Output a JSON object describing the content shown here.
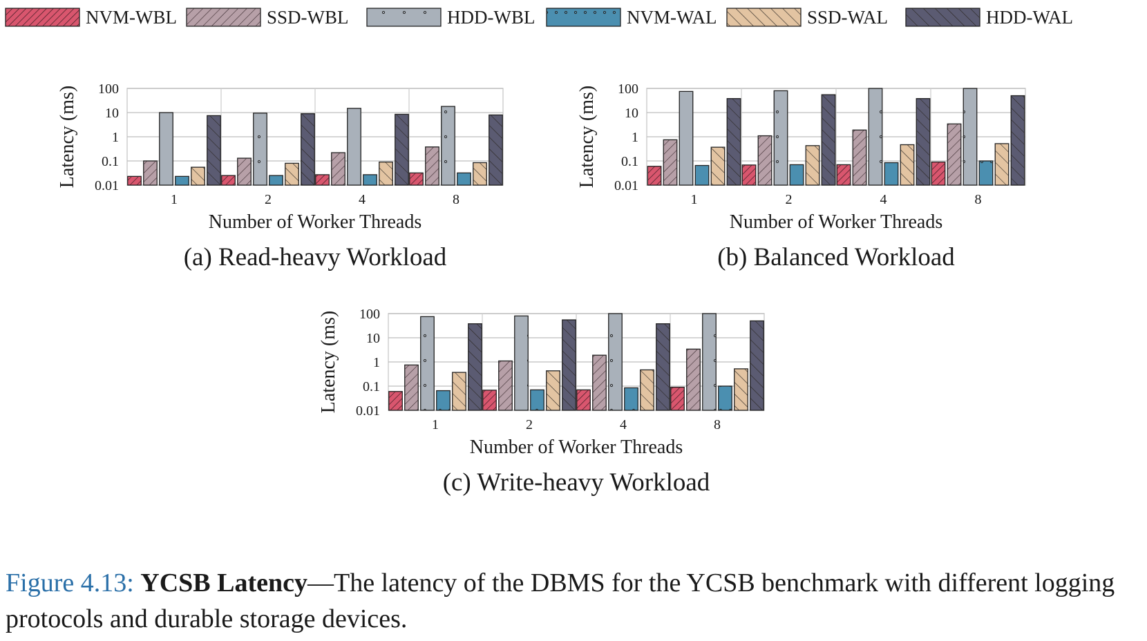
{
  "legend": {
    "items": [
      {
        "label": "NVM-WBL",
        "color": "#d9566e",
        "pattern": "diag-dense"
      },
      {
        "label": "SSD-WBL",
        "color": "#b7a0a8",
        "pattern": "dots"
      },
      {
        "label": "HDD-WBL",
        "color": "#a9b1ba",
        "pattern": "dots-sparse"
      },
      {
        "label": "NVM-WAL",
        "color": "#4b8fb0",
        "pattern": "dots"
      },
      {
        "label": "SSD-WAL",
        "color": "#e3c4a2",
        "pattern": "diag-back"
      },
      {
        "label": "HDD-WAL",
        "color": "#5b5b72",
        "pattern": "diag-back"
      }
    ]
  },
  "chart_data": [
    {
      "type": "bar",
      "title": "(a) Read-heavy Workload",
      "xlabel": "Number of Worker Threads",
      "ylabel": "Latency (ms)",
      "yscale": "log",
      "ylim": [
        0.01,
        100
      ],
      "yticks": [
        "0.01",
        "0.1",
        "1",
        "10",
        "100"
      ],
      "grid": true,
      "categories": [
        "1",
        "2",
        "4",
        "8"
      ],
      "series": [
        {
          "name": "NVM-WBL",
          "values": [
            0.023,
            0.025,
            0.027,
            0.032
          ]
        },
        {
          "name": "SSD-WBL",
          "values": [
            0.1,
            0.13,
            0.22,
            0.38
          ]
        },
        {
          "name": "HDD-WBL",
          "values": [
            10,
            9.5,
            15,
            18
          ]
        },
        {
          "name": "NVM-WAL",
          "values": [
            0.023,
            0.025,
            0.027,
            0.032
          ]
        },
        {
          "name": "SSD-WAL",
          "values": [
            0.055,
            0.08,
            0.09,
            0.085
          ]
        },
        {
          "name": "HDD-WAL",
          "values": [
            7.5,
            9,
            8.5,
            8
          ]
        }
      ]
    },
    {
      "type": "bar",
      "title": "(b) Balanced Workload",
      "xlabel": "Number of Worker Threads",
      "ylabel": "Latency (ms)",
      "yscale": "log",
      "ylim": [
        0.01,
        100
      ],
      "yticks": [
        "0.01",
        "0.1",
        "1",
        "10",
        "100"
      ],
      "grid": true,
      "categories": [
        "1",
        "2",
        "4",
        "8"
      ],
      "series": [
        {
          "name": "NVM-WBL",
          "values": [
            0.06,
            0.068,
            0.07,
            0.09
          ]
        },
        {
          "name": "SSD-WBL",
          "values": [
            0.75,
            1.1,
            1.9,
            3.4
          ]
        },
        {
          "name": "HDD-WBL",
          "values": [
            75,
            80,
            100,
            100
          ]
        },
        {
          "name": "NVM-WAL",
          "values": [
            0.065,
            0.07,
            0.085,
            0.1
          ]
        },
        {
          "name": "SSD-WAL",
          "values": [
            0.37,
            0.43,
            0.47,
            0.52
          ]
        },
        {
          "name": "HDD-WAL",
          "values": [
            38,
            55,
            38,
            50
          ]
        }
      ]
    },
    {
      "type": "bar",
      "title": "(c) Write-heavy Workload",
      "xlabel": "Number of Worker Threads",
      "ylabel": "Latency (ms)",
      "yscale": "log",
      "ylim": [
        0.01,
        100
      ],
      "yticks": [
        "0.01",
        "0.1",
        "1",
        "10",
        "100"
      ],
      "grid": true,
      "categories": [
        "1",
        "2",
        "4",
        "8"
      ],
      "series": [
        {
          "name": "NVM-WBL",
          "values": [
            0.06,
            0.068,
            0.07,
            0.09
          ]
        },
        {
          "name": "SSD-WBL",
          "values": [
            0.75,
            1.1,
            1.9,
            3.4
          ]
        },
        {
          "name": "HDD-WBL",
          "values": [
            75,
            80,
            100,
            100
          ]
        },
        {
          "name": "NVM-WAL",
          "values": [
            0.065,
            0.07,
            0.085,
            0.1
          ]
        },
        {
          "name": "SSD-WAL",
          "values": [
            0.37,
            0.43,
            0.47,
            0.52
          ]
        },
        {
          "name": "HDD-WAL",
          "values": [
            38,
            55,
            38,
            50
          ]
        }
      ]
    }
  ],
  "caption": {
    "figure_label": "Figure 4.13:",
    "bold_title": "YCSB Latency",
    "text": "—The latency of the DBMS for the YCSB benchmark with different logging protocols and durable storage devices."
  }
}
